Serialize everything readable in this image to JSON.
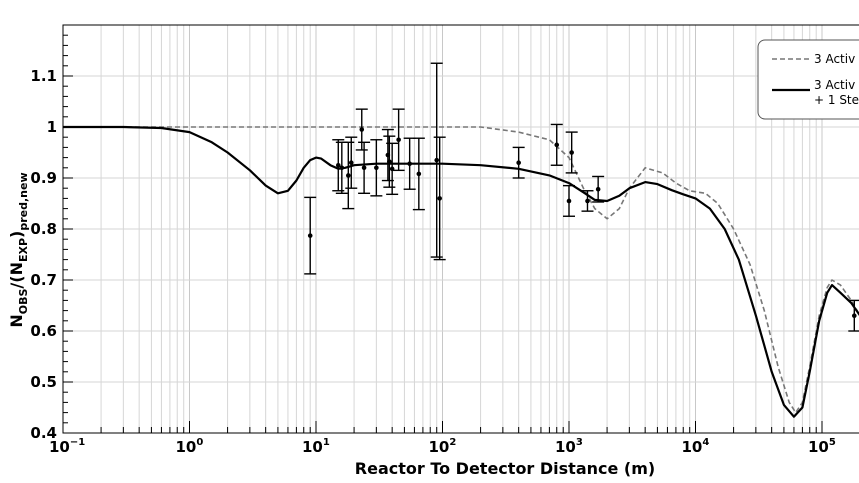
{
  "chart_data": {
    "type": "scatter",
    "xscale": "log",
    "xlim": [
      0.1,
      200000
    ],
    "ylim": [
      0.4,
      1.2
    ],
    "grid": true,
    "xlabel": "Reactor To Detector Distance (m)",
    "ylabel": {
      "main": "N",
      "sub1": "OBS",
      "mid": "/(N",
      "sub2": "EXP",
      "sub3": ")",
      "sub4": "pred,new"
    },
    "x_ticks": [
      {
        "value": 0.1,
        "base": "10",
        "exp": "−1"
      },
      {
        "value": 1,
        "base": "10",
        "exp": "0"
      },
      {
        "value": 10,
        "base": "10",
        "exp": "1"
      },
      {
        "value": 100,
        "base": "10",
        "exp": "2"
      },
      {
        "value": 1000,
        "base": "10",
        "exp": "3"
      },
      {
        "value": 10000,
        "base": "10",
        "exp": "4"
      },
      {
        "value": 100000,
        "base": "10",
        "exp": "5"
      }
    ],
    "y_ticks": [
      {
        "value": 0.4,
        "label": "0.4"
      },
      {
        "value": 0.5,
        "label": "0.5"
      },
      {
        "value": 0.6,
        "label": "0.6"
      },
      {
        "value": 0.7,
        "label": "0.7"
      },
      {
        "value": 0.8,
        "label": "0.8"
      },
      {
        "value": 0.9,
        "label": "0.9"
      },
      {
        "value": 1.0,
        "label": "1"
      },
      {
        "value": 1.1,
        "label": "1.1"
      }
    ],
    "legend": {
      "placement": "top-right",
      "entries": [
        {
          "label_lines": [
            "3 Activ"
          ],
          "style": "dashed",
          "color": "#777777"
        },
        {
          "label_lines": [
            "3 Activ",
            "+ 1 Ste"
          ],
          "style": "solid",
          "color": "#000000"
        }
      ]
    },
    "series": [
      {
        "style": "dashed",
        "color": "#777777",
        "points": [
          [
            0.1,
            1.0
          ],
          [
            1,
            1.0
          ],
          [
            10,
            1.0
          ],
          [
            100,
            1.0
          ],
          [
            200,
            1.0
          ],
          [
            400,
            0.99
          ],
          [
            700,
            0.975
          ],
          [
            1000,
            0.94
          ],
          [
            1300,
            0.88
          ],
          [
            1600,
            0.84
          ],
          [
            2000,
            0.82
          ],
          [
            2500,
            0.84
          ],
          [
            3000,
            0.88
          ],
          [
            4000,
            0.92
          ],
          [
            5500,
            0.91
          ],
          [
            7000,
            0.89
          ],
          [
            9000,
            0.875
          ],
          [
            12000,
            0.87
          ],
          [
            15000,
            0.85
          ],
          [
            20000,
            0.8
          ],
          [
            27000,
            0.73
          ],
          [
            35000,
            0.64
          ],
          [
            45000,
            0.53
          ],
          [
            55000,
            0.46
          ],
          [
            62000,
            0.44
          ],
          [
            70000,
            0.46
          ],
          [
            80000,
            0.53
          ],
          [
            95000,
            0.63
          ],
          [
            110000,
            0.685
          ],
          [
            120000,
            0.7
          ],
          [
            140000,
            0.69
          ],
          [
            170000,
            0.66
          ],
          [
            200000,
            0.63
          ]
        ]
      },
      {
        "style": "solid",
        "color": "#000000",
        "points": [
          [
            0.1,
            1.0
          ],
          [
            0.3,
            1.0
          ],
          [
            0.6,
            0.998
          ],
          [
            1,
            0.99
          ],
          [
            1.5,
            0.97
          ],
          [
            2,
            0.95
          ],
          [
            3,
            0.915
          ],
          [
            4,
            0.885
          ],
          [
            5,
            0.87
          ],
          [
            6,
            0.875
          ],
          [
            7,
            0.895
          ],
          [
            8,
            0.92
          ],
          [
            9,
            0.935
          ],
          [
            10,
            0.94
          ],
          [
            11,
            0.938
          ],
          [
            13,
            0.925
          ],
          [
            15,
            0.918
          ],
          [
            17,
            0.92
          ],
          [
            20,
            0.925
          ],
          [
            30,
            0.928
          ],
          [
            50,
            0.928
          ],
          [
            100,
            0.928
          ],
          [
            200,
            0.925
          ],
          [
            400,
            0.918
          ],
          [
            700,
            0.905
          ],
          [
            1000,
            0.89
          ],
          [
            1300,
            0.872
          ],
          [
            1600,
            0.857
          ],
          [
            2000,
            0.855
          ],
          [
            2500,
            0.865
          ],
          [
            3000,
            0.88
          ],
          [
            4000,
            0.892
          ],
          [
            5000,
            0.888
          ],
          [
            6500,
            0.876
          ],
          [
            8000,
            0.868
          ],
          [
            10000,
            0.86
          ],
          [
            13000,
            0.84
          ],
          [
            17000,
            0.8
          ],
          [
            22000,
            0.74
          ],
          [
            30000,
            0.63
          ],
          [
            40000,
            0.52
          ],
          [
            50000,
            0.455
          ],
          [
            60000,
            0.432
          ],
          [
            70000,
            0.45
          ],
          [
            80000,
            0.52
          ],
          [
            95000,
            0.62
          ],
          [
            110000,
            0.675
          ],
          [
            120000,
            0.69
          ],
          [
            140000,
            0.675
          ],
          [
            170000,
            0.655
          ],
          [
            200000,
            0.63
          ]
        ]
      }
    ],
    "points": [
      {
        "x": 9.0,
        "y": 0.787,
        "err": 0.075
      },
      {
        "x": 15.0,
        "y": 0.925,
        "err": 0.05
      },
      {
        "x": 16.0,
        "y": 0.92,
        "err": 0.05
      },
      {
        "x": 18.0,
        "y": 0.905,
        "err": 0.065
      },
      {
        "x": 19.0,
        "y": 0.93,
        "err": 0.05
      },
      {
        "x": 23.0,
        "y": 0.995,
        "err": 0.04
      },
      {
        "x": 24.0,
        "y": 0.92,
        "err": 0.05
      },
      {
        "x": 30.0,
        "y": 0.92,
        "err": 0.055
      },
      {
        "x": 37.0,
        "y": 0.945,
        "err": 0.05
      },
      {
        "x": 38.0,
        "y": 0.932,
        "err": 0.05
      },
      {
        "x": 40.0,
        "y": 0.918,
        "err": 0.05
      },
      {
        "x": 45.0,
        "y": 0.975,
        "err": 0.06
      },
      {
        "x": 55.0,
        "y": 0.928,
        "err": 0.05
      },
      {
        "x": 65.0,
        "y": 0.908,
        "err": 0.07
      },
      {
        "x": 90.0,
        "y": 0.935,
        "err": 0.19
      },
      {
        "x": 95.0,
        "y": 0.86,
        "err": 0.12
      },
      {
        "x": 400.0,
        "y": 0.93,
        "err": 0.03
      },
      {
        "x": 800.0,
        "y": 0.965,
        "err": 0.04
      },
      {
        "x": 1000.0,
        "y": 0.855,
        "err": 0.03
      },
      {
        "x": 1050.0,
        "y": 0.95,
        "err": 0.04
      },
      {
        "x": 1400.0,
        "y": 0.855,
        "err": 0.02
      },
      {
        "x": 1700.0,
        "y": 0.878,
        "err": 0.025
      },
      {
        "x": 180000.0,
        "y": 0.63,
        "err": 0.03
      }
    ]
  }
}
